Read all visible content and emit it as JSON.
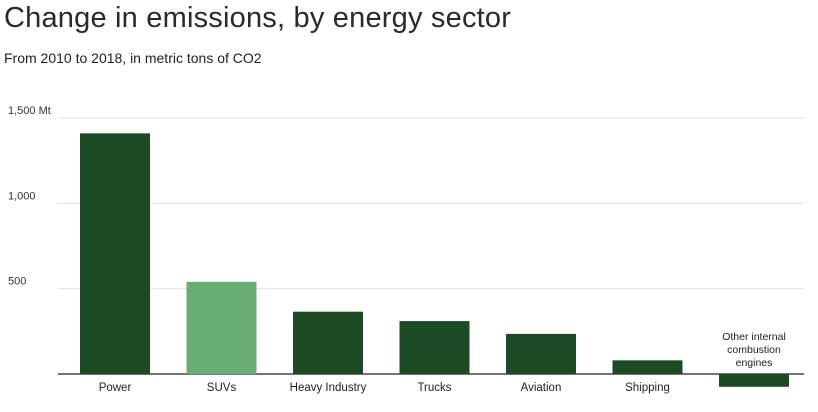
{
  "chart_data": {
    "type": "bar",
    "title": "Change in emissions, by energy sector",
    "subtitle": "From 2010 to 2018, in metric tons of CO2",
    "categories": [
      "Power",
      "SUVs",
      "Heavy Industry",
      "Trucks",
      "Aviation",
      "Shipping",
      "Other internal combustion engines"
    ],
    "values": [
      1410,
      540,
      365,
      310,
      235,
      80,
      -75
    ],
    "highlight_category": "SUVs",
    "ylim": [
      -100,
      1500
    ],
    "yticks": [
      {
        "value": 1500,
        "label": "1,500 Mt"
      },
      {
        "value": 1000,
        "label": "1,000"
      },
      {
        "value": 500,
        "label": "500"
      }
    ],
    "annotation": {
      "category": "Other internal combustion engines",
      "lines": [
        "Other internal",
        "combustion",
        "engines"
      ]
    },
    "grid": true,
    "colors": {
      "bar": "#1c4a24",
      "highlight": "#68ad74",
      "grid": "#e2e2e2",
      "baseline": "#222222"
    }
  }
}
